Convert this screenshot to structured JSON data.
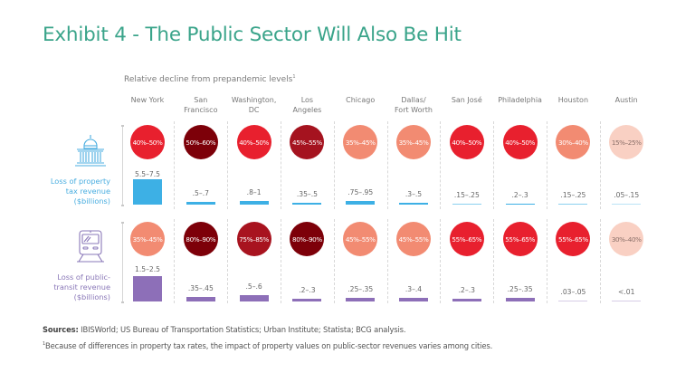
{
  "title": "Exhibit 4 - The Public Sector Will Also Be Hit",
  "subtitle": "Relative decline from prepandemic levels",
  "subtitle_footnote_marker": "1",
  "chart_data": {
    "type": "table",
    "title": "Exhibit 4 - The Public Sector Will Also Be Hit",
    "subtitle": "Relative decline from prepandemic levels",
    "categories": [
      "New York",
      "San Francisco",
      "Washington, DC",
      "Los Angeles",
      "Chicago",
      "Dallas/ Fort Worth",
      "San José",
      "Philadelphia",
      "Houston",
      "Austin"
    ],
    "category_labels": [
      [
        "New York"
      ],
      [
        "San",
        "Francisco"
      ],
      [
        "Washington,",
        "DC"
      ],
      [
        "Los",
        "Angeles"
      ],
      [
        "Chicago"
      ],
      [
        "Dallas/",
        "Fort Worth"
      ],
      [
        "San José"
      ],
      [
        "Philadelphia"
      ],
      [
        "Houston"
      ],
      [
        "Austin"
      ]
    ],
    "series": [
      {
        "name": "Loss of property tax revenue ($billions)",
        "label_lines": [
          "Loss of property",
          "tax revenue",
          "($billions)"
        ],
        "icon": "capitol-building-icon",
        "label_color": "#4aaee0",
        "bar_color": "#3db0e5",
        "relative_decline": [
          "40%–50%",
          "50%–60%",
          "40%–50%",
          "45%–55%",
          "35%–45%",
          "35%–45%",
          "40%–50%",
          "40%–50%",
          "30%–40%",
          "15%–25%"
        ],
        "relative_decline_mid": [
          45,
          55,
          45,
          50,
          40,
          40,
          45,
          45,
          35,
          20
        ],
        "value_labels": [
          "5.5–7.5",
          ".5–.7",
          ".8–1",
          ".35–.5",
          ".75–.95",
          ".3–.5",
          ".15–.25",
          ".2–.3",
          ".15–.25",
          ".05–.15"
        ],
        "values_low": [
          5.5,
          0.5,
          0.8,
          0.35,
          0.75,
          0.3,
          0.15,
          0.2,
          0.15,
          0.05
        ],
        "values_high": [
          7.5,
          0.7,
          1.0,
          0.5,
          0.95,
          0.5,
          0.25,
          0.3,
          0.25,
          0.15
        ]
      },
      {
        "name": "Loss of public-transit revenue ($billions)",
        "label_lines": [
          "Loss of public-",
          "transit revenue",
          "($billions)"
        ],
        "icon": "train-icon",
        "label_color": "#8a78b8",
        "bar_color": "#8d6fb8",
        "relative_decline": [
          "35%–45%",
          "80%–90%",
          "75%–85%",
          "80%–90%",
          "45%–55%",
          "45%–55%",
          "55%–65%",
          "55%–65%",
          "55%–65%",
          "30%–40%"
        ],
        "relative_decline_mid": [
          40,
          85,
          80,
          85,
          50,
          50,
          60,
          60,
          60,
          35
        ],
        "value_labels": [
          "1.5–2.5",
          ".35–.45",
          ".5–.6",
          ".2–.3",
          ".25–.35",
          ".3–.4",
          ".2–.3",
          ".25–.35",
          ".03–.05",
          "<.01"
        ],
        "values_low": [
          1.5,
          0.35,
          0.5,
          0.2,
          0.25,
          0.3,
          0.2,
          0.25,
          0.03,
          0.0
        ],
        "values_high": [
          2.5,
          0.45,
          0.6,
          0.3,
          0.35,
          0.4,
          0.3,
          0.35,
          0.05,
          0.01
        ]
      }
    ],
    "color_scale": {
      "15-25": "#f8cfc2",
      "30-40": "#f28a70",
      "35-45": "#f28a70",
      "40-50": "#e8212f",
      "45-55": "#f28a70",
      "55-65": "#e8212f",
      "75-85": "#a8121e",
      "80-90": "#7a0008"
    }
  },
  "circle_colors": {
    "row0": [
      "#e8202e",
      "#7d0009",
      "#e8202e",
      "#a5131f",
      "#f28b72",
      "#f28b72",
      "#e8202e",
      "#e8202e",
      "#f28b72",
      "#f9d0c3"
    ],
    "row1": [
      "#f28b72",
      "#7d0009",
      "#a8131f",
      "#7d0009",
      "#f28b72",
      "#f28b72",
      "#e8202e",
      "#e8202e",
      "#e8202e",
      "#f9d0c3"
    ]
  },
  "circle_text_colors": {
    "row0": [
      "#ffffff",
      "#ffffff",
      "#ffffff",
      "#ffffff",
      "#ffffff",
      "#ffffff",
      "#ffffff",
      "#ffffff",
      "#ffffff",
      "#8a6f68"
    ],
    "row1": [
      "#ffffff",
      "#ffffff",
      "#ffffff",
      "#ffffff",
      "#ffffff",
      "#ffffff",
      "#ffffff",
      "#ffffff",
      "#ffffff",
      "#8a6f68"
    ]
  },
  "footer": {
    "sources_label": "Sources:",
    "sources_text": " IBISWorld; US Bureau of Transportation Statistics; Urban Institute; Statista; BCG analysis.",
    "footnote_marker": "1",
    "footnote_text": "Because of differences in property tax rates, the impact of property values on public-sector revenues varies among cities."
  }
}
